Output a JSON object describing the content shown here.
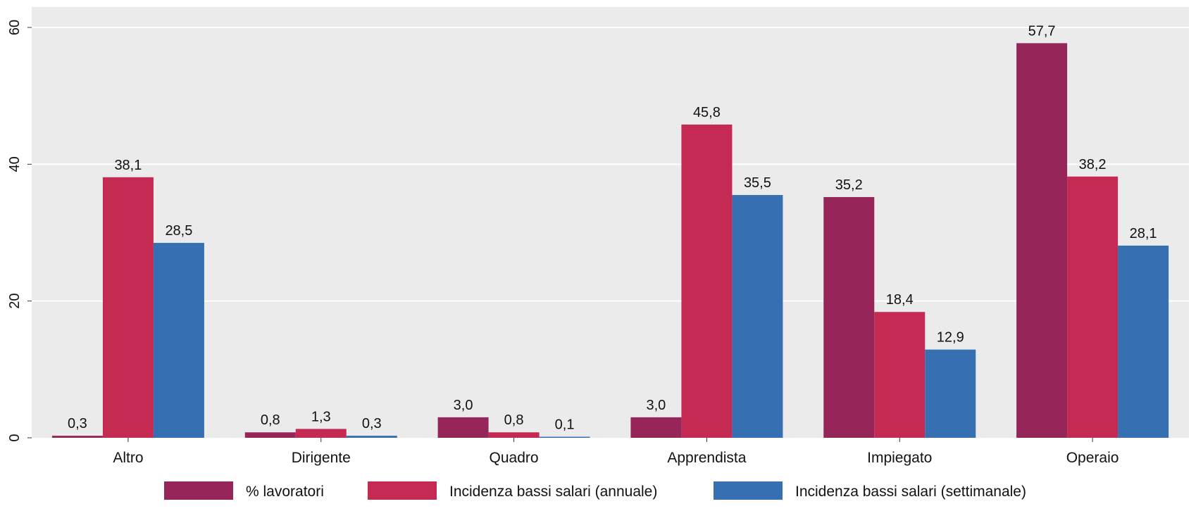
{
  "chart_data": {
    "type": "bar",
    "title": "",
    "xlabel": "",
    "ylabel": "",
    "ylim": [
      0,
      60
    ],
    "yticks": [
      "0",
      "20",
      "40",
      "60"
    ],
    "grid": true,
    "legend_position": "bottom",
    "categories": [
      "Altro",
      "Dirigente",
      "Quadro",
      "Apprendista",
      "Impiegato",
      "Operaio"
    ],
    "series": [
      {
        "name": "% lavoratori",
        "color": "#962659",
        "values": [
          0.3,
          0.8,
          3.0,
          3.0,
          35.2,
          57.7
        ],
        "labels": [
          "0,3",
          "0,8",
          "3,0",
          "3,0",
          "35,2",
          "57,7"
        ]
      },
      {
        "name": "Incidenza bassi salari (annuale)",
        "color": "#c52b52",
        "values": [
          38.1,
          1.3,
          0.8,
          45.8,
          18.4,
          38.2
        ],
        "labels": [
          "38,1",
          "1,3",
          "0,8",
          "45,8",
          "18,4",
          "38,2"
        ]
      },
      {
        "name": "Incidenza bassi salari (settimanale)",
        "color": "#3670b3",
        "values": [
          28.5,
          0.3,
          0.1,
          35.5,
          12.9,
          28.1
        ],
        "labels": [
          "28,5",
          "0,3",
          "0,1",
          "35,5",
          "12,9",
          "28,1"
        ]
      }
    ]
  }
}
